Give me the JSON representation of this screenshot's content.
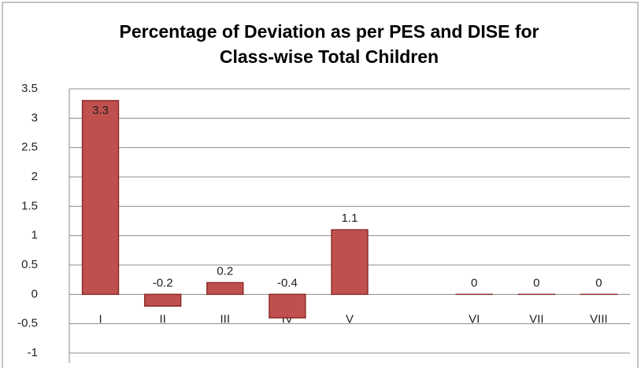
{
  "chart_data": {
    "type": "bar",
    "title": [
      "Percentage of Deviation as per PES and DISE for",
      "Class-wise Total Children"
    ],
    "categories": [
      "I",
      "II",
      "III",
      "IV",
      "V",
      null,
      "VI",
      "VII",
      "VIII"
    ],
    "values": [
      3.3,
      -0.2,
      0.2,
      -0.4,
      1.1,
      null,
      0,
      0,
      0
    ],
    "color": "#c0504d",
    "ylim": [
      -1,
      3.5
    ],
    "yticks": [
      -1,
      -0.5,
      0,
      0.5,
      1,
      1.5,
      2,
      2.5,
      3,
      3.5
    ],
    "grid": true
  }
}
